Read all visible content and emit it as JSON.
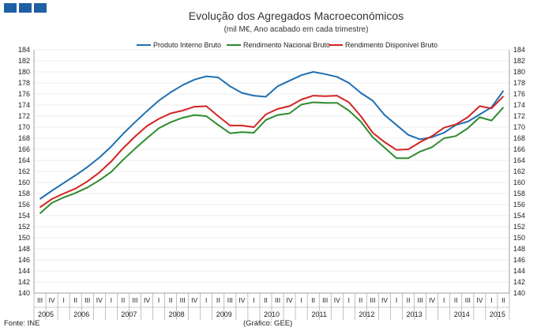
{
  "chart_data": {
    "type": "line",
    "title": "Evolução dos Agregados Macroeconómicos",
    "subtitle": "(mil M€, Ano acabado em cada trimestre)",
    "ylim": [
      140,
      184
    ],
    "yticks": [
      140,
      142,
      144,
      146,
      148,
      150,
      152,
      154,
      156,
      158,
      160,
      162,
      164,
      166,
      168,
      170,
      172,
      174,
      176,
      178,
      180,
      182,
      184
    ],
    "x": [
      {
        "q": "III",
        "year": "2005"
      },
      {
        "q": "IV",
        "year": "2005"
      },
      {
        "q": "I",
        "year": "2006"
      },
      {
        "q": "II",
        "year": "2006"
      },
      {
        "q": "III",
        "year": "2006"
      },
      {
        "q": "IV",
        "year": "2006"
      },
      {
        "q": "I",
        "year": "2007"
      },
      {
        "q": "II",
        "year": "2007"
      },
      {
        "q": "III",
        "year": "2007"
      },
      {
        "q": "IV",
        "year": "2007"
      },
      {
        "q": "I",
        "year": "2008"
      },
      {
        "q": "II",
        "year": "2008"
      },
      {
        "q": "III",
        "year": "2008"
      },
      {
        "q": "IV",
        "year": "2008"
      },
      {
        "q": "I",
        "year": "2009"
      },
      {
        "q": "II",
        "year": "2009"
      },
      {
        "q": "III",
        "year": "2009"
      },
      {
        "q": "IV",
        "year": "2009"
      },
      {
        "q": "I",
        "year": "2010"
      },
      {
        "q": "II",
        "year": "2010"
      },
      {
        "q": "III",
        "year": "2010"
      },
      {
        "q": "IV",
        "year": "2010"
      },
      {
        "q": "I",
        "year": "2011"
      },
      {
        "q": "II",
        "year": "2011"
      },
      {
        "q": "III",
        "year": "2011"
      },
      {
        "q": "IV",
        "year": "2011"
      },
      {
        "q": "I",
        "year": "2012"
      },
      {
        "q": "II",
        "year": "2012"
      },
      {
        "q": "III",
        "year": "2012"
      },
      {
        "q": "IV",
        "year": "2012"
      },
      {
        "q": "I",
        "year": "2013"
      },
      {
        "q": "II",
        "year": "2013"
      },
      {
        "q": "III",
        "year": "2013"
      },
      {
        "q": "IV",
        "year": "2013"
      },
      {
        "q": "I",
        "year": "2014"
      },
      {
        "q": "II",
        "year": "2014"
      },
      {
        "q": "III",
        "year": "2014"
      },
      {
        "q": "IV",
        "year": "2014"
      },
      {
        "q": "I",
        "year": "2015"
      },
      {
        "q": "II",
        "year": "2015"
      }
    ],
    "years": [
      "2005",
      "2006",
      "2007",
      "2008",
      "2009",
      "2010",
      "2011",
      "2012",
      "2013",
      "2014",
      "2015"
    ],
    "series": [
      {
        "name": "Produto Interno Bruto",
        "color": "#1f6fb3",
        "values": [
          157.0,
          158.5,
          159.9,
          161.3,
          162.8,
          164.5,
          166.5,
          168.8,
          170.9,
          172.9,
          174.8,
          176.3,
          177.6,
          178.6,
          179.2,
          179.0,
          177.4,
          176.2,
          175.7,
          175.5,
          177.4,
          178.4,
          179.4,
          180.0,
          179.6,
          179.1,
          178.0,
          176.2,
          174.8,
          172.2,
          170.4,
          168.6,
          167.8,
          168.2,
          169.0,
          170.4,
          171.0,
          172.3,
          173.6,
          176.6
        ]
      },
      {
        "name": "Rendimento Nacional Bruto",
        "color": "#2e8b2e",
        "values": [
          154.4,
          156.3,
          157.3,
          158.1,
          159.1,
          160.4,
          161.9,
          164.1,
          166.1,
          168.0,
          169.8,
          170.9,
          171.7,
          172.2,
          172.0,
          170.4,
          168.9,
          169.1,
          169.0,
          171.3,
          172.2,
          172.5,
          174.1,
          174.5,
          174.4,
          174.4,
          173.0,
          171.0,
          168.2,
          166.3,
          164.4,
          164.4,
          165.6,
          166.4,
          168.0,
          168.4,
          169.8,
          171.8,
          171.2,
          173.6
        ]
      },
      {
        "name": "Rendimento Disponível Bruto",
        "color": "#d42424",
        "values": [
          155.5,
          157.0,
          158.0,
          158.9,
          160.2,
          161.8,
          163.8,
          166.2,
          168.3,
          170.2,
          171.5,
          172.5,
          173.0,
          173.7,
          173.8,
          172.0,
          170.3,
          170.3,
          170.0,
          172.3,
          173.3,
          173.8,
          175.0,
          175.7,
          175.6,
          175.7,
          174.5,
          172.0,
          169.0,
          167.3,
          165.9,
          166.0,
          167.3,
          168.4,
          169.9,
          170.5,
          171.8,
          173.8,
          173.4,
          175.6
        ]
      }
    ]
  },
  "footer": {
    "source": "Fonte: INE",
    "credit": "(Gráfico: GEE)"
  }
}
